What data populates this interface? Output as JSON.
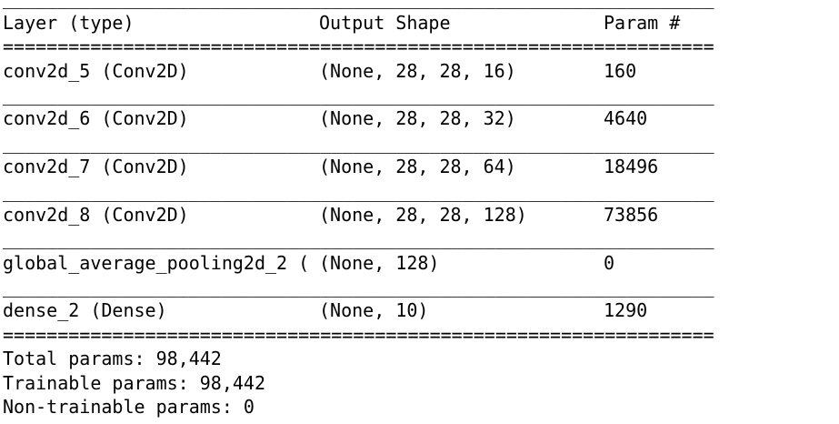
{
  "separators": {
    "thin": "_________________________________________________________________",
    "thick": "================================================================="
  },
  "header": {
    "layer": "Layer (type)",
    "shape": "Output Shape",
    "params": "Param #"
  },
  "layers": [
    {
      "name": "conv2d_5 (Conv2D)",
      "shape": "(None, 28, 28, 16)",
      "params": "160"
    },
    {
      "name": "conv2d_6 (Conv2D)",
      "shape": "(None, 28, 28, 32)",
      "params": "4640"
    },
    {
      "name": "conv2d_7 (Conv2D)",
      "shape": "(None, 28, 28, 64)",
      "params": "18496"
    },
    {
      "name": "conv2d_8 (Conv2D)",
      "shape": "(None, 28, 28, 128)",
      "params": "73856"
    },
    {
      "name": "global_average_pooling2d_2 (",
      "shape": "(None, 128)",
      "params": "0"
    },
    {
      "name": "dense_2 (Dense)",
      "shape": "(None, 10)",
      "params": "1290"
    }
  ],
  "totals": {
    "total": "Total params: 98,442",
    "trainable": "Trainable params: 98,442",
    "non_trainable": "Non-trainable params: 0"
  }
}
